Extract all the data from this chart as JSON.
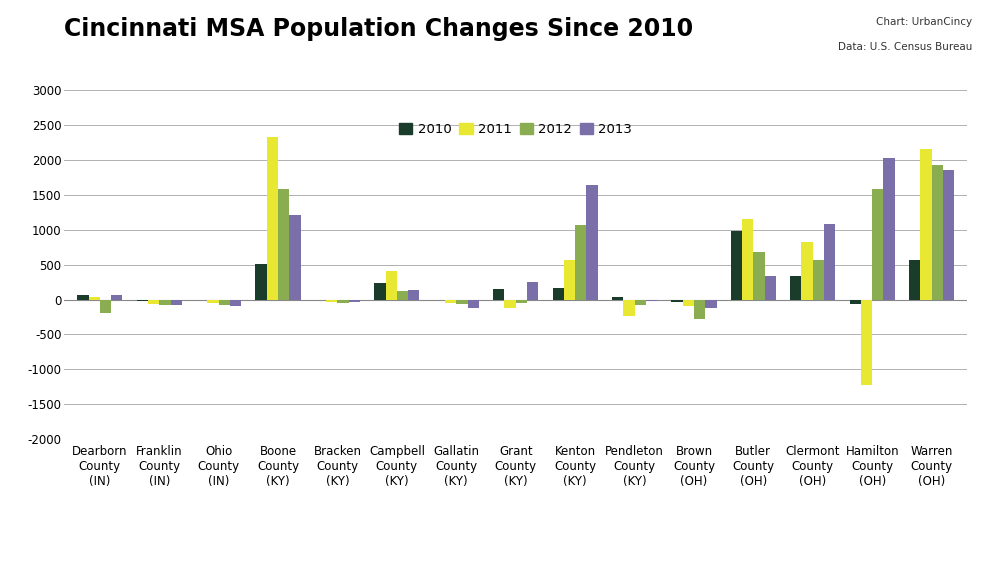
{
  "title": "Cincinnati MSA Population Changes Since 2010",
  "subtitle_chart": "Chart: UrbanCincy",
  "subtitle_data": "Data: U.S. Census Bureau",
  "categories": [
    "Dearborn\nCounty\n(IN)",
    "Franklin\nCounty\n(IN)",
    "Ohio\nCounty\n(IN)",
    "Boone\nCounty\n(KY)",
    "Bracken\nCounty\n(KY)",
    "Campbell\nCounty\n(KY)",
    "Gallatin\nCounty\n(KY)",
    "Grant\nCounty\n(KY)",
    "Kenton\nCounty\n(KY)",
    "Pendleton\nCounty\n(KY)",
    "Brown\nCounty\n(OH)",
    "Butler\nCounty\n(OH)",
    "Clermont\nCounty\n(OH)",
    "Hamilton\nCounty\n(OH)",
    "Warren\nCounty\n(OH)"
  ],
  "series": {
    "2010": [
      70,
      -20,
      -10,
      510,
      -10,
      230,
      -10,
      150,
      170,
      30,
      -30,
      980,
      340,
      -60,
      560
    ],
    "2011": [
      30,
      -60,
      -50,
      2330,
      -30,
      410,
      -50,
      -120,
      560,
      -240,
      -100,
      1160,
      830,
      -1230,
      2160
    ],
    "2012": [
      -200,
      -80,
      -80,
      1580,
      -50,
      120,
      -70,
      -50,
      1070,
      -80,
      -280,
      680,
      560,
      1580,
      1930
    ],
    "2013": [
      70,
      -80,
      -100,
      1210,
      -30,
      140,
      -120,
      250,
      1640,
      -20,
      -120,
      330,
      1080,
      2020,
      1860
    ]
  },
  "colors": {
    "2010": "#1a3d2b",
    "2011": "#e8e832",
    "2012": "#8aad52",
    "2013": "#7b6faa"
  },
  "ylim": [
    -2000,
    3000
  ],
  "yticks": [
    -2000,
    -1500,
    -1000,
    -500,
    0,
    500,
    1000,
    1500,
    2000,
    2500,
    3000
  ],
  "background_color": "#ffffff",
  "grid_color": "#b0b0b0",
  "title_fontsize": 17,
  "tick_fontsize": 8.5,
  "legend_fontsize": 9.5,
  "bar_width": 0.19
}
